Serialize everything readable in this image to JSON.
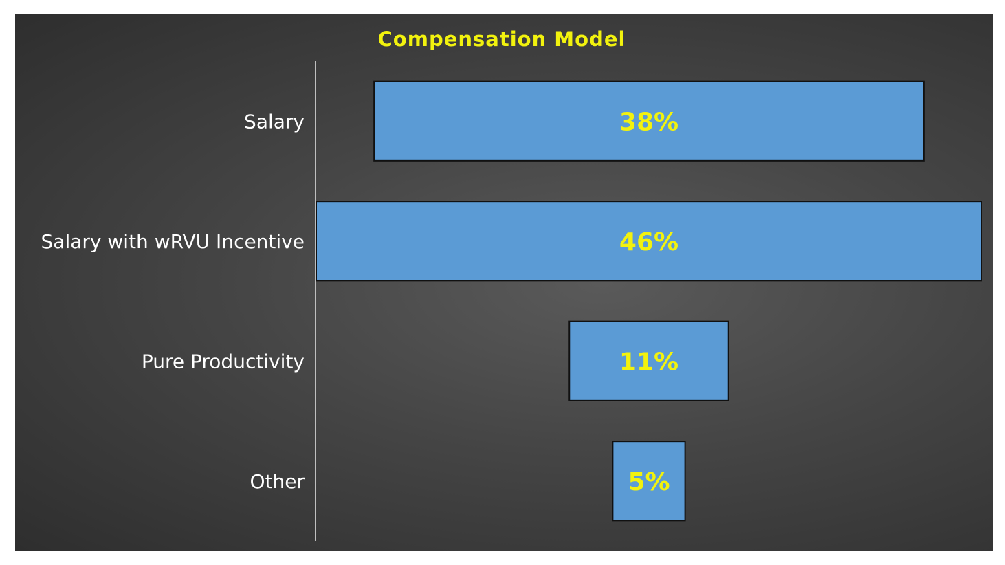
{
  "colors": {
    "title": "#f2f20e",
    "bar_fill": "#5b9bd5",
    "bar_stroke": "#111111",
    "data_label": "#f2f20e",
    "category_label": "#ffffff",
    "axis_line": "#bfbfbf"
  },
  "chart_data": {
    "type": "bar",
    "orientation": "horizontal-funnel",
    "title": "Compensation Model",
    "categories": [
      "Salary",
      "Salary with wRVU Incentive",
      "Pure Productivity",
      "Other"
    ],
    "values": [
      38,
      46,
      11,
      5
    ],
    "value_labels": [
      "38%",
      "46%",
      "11%",
      "5%"
    ],
    "unit": "%",
    "xlabel": "",
    "ylabel": "",
    "xlim": [
      0,
      46
    ],
    "grid": false,
    "legend": "none"
  }
}
